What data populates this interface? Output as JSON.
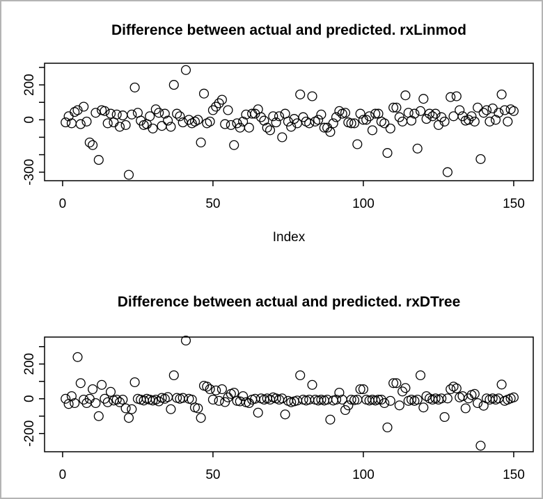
{
  "window": {
    "background": "#ffffff",
    "border_color": "#b4b4b4",
    "foreground": "#000000"
  },
  "chart_data": [
    {
      "type": "scatter",
      "title": "Difference between actual and predicted. rxLinmod",
      "xlabel": "Index",
      "ylabel": "",
      "marker": "open-circle",
      "grid": false,
      "x_note": "x value = index 1..150",
      "xlim": [
        -6,
        156.5
      ],
      "ylim": [
        -349,
        324
      ],
      "x_ticks": [
        0,
        50,
        100,
        150
      ],
      "x_tick_labels": [
        "0",
        "50",
        "100",
        "150"
      ],
      "y_ticks": [
        300,
        200,
        100,
        0,
        -100,
        -200,
        -300
      ],
      "y_tick_labels": [
        "",
        "200",
        "",
        "0",
        "",
        "",
        "-300"
      ],
      "values": [
        -15,
        20,
        -20,
        45,
        55,
        -25,
        75,
        -10,
        -130,
        -145,
        40,
        -230,
        55,
        50,
        -20,
        35,
        -15,
        30,
        -40,
        25,
        -30,
        -315,
        30,
        185,
        40,
        -5,
        -30,
        -25,
        20,
        -50,
        60,
        40,
        -35,
        35,
        -5,
        -40,
        200,
        35,
        20,
        -15,
        285,
        0,
        -20,
        -10,
        0,
        -130,
        150,
        -20,
        -10,
        55,
        75,
        95,
        115,
        -25,
        55,
        -30,
        -145,
        -20,
        -45,
        -10,
        30,
        -45,
        35,
        35,
        60,
        15,
        -5,
        -45,
        -60,
        20,
        -15,
        20,
        -100,
        35,
        -10,
        -40,
        5,
        -20,
        145,
        15,
        -10,
        -20,
        135,
        -10,
        0,
        30,
        -45,
        -45,
        -70,
        -20,
        15,
        50,
        35,
        40,
        -15,
        -20,
        -20,
        -140,
        35,
        0,
        0,
        20,
        -60,
        35,
        35,
        -10,
        -20,
        -190,
        -50,
        70,
        70,
        15,
        -10,
        140,
        40,
        -5,
        35,
        -165,
        50,
        120,
        5,
        35,
        20,
        35,
        -30,
        15,
        -10,
        -300,
        130,
        20,
        135,
        55,
        20,
        -5,
        0,
        20,
        -10,
        70,
        -225,
        40,
        55,
        -10,
        65,
        0,
        40,
        145,
        55,
        -10,
        60,
        50
      ]
    },
    {
      "type": "scatter",
      "title": "Difference between actual and predicted. rxDTree",
      "xlabel": "",
      "ylabel": "",
      "marker": "open-circle",
      "grid": false,
      "x_note": "x value = index 1..150",
      "xlim": [
        -6,
        156.5
      ],
      "ylim": [
        -305,
        355
      ],
      "x_ticks": [
        0,
        50,
        100,
        150
      ],
      "x_tick_labels": [
        "0",
        "50",
        "100",
        "150"
      ],
      "y_ticks": [
        300,
        200,
        100,
        0,
        -100,
        -200
      ],
      "y_tick_labels": [
        "",
        "200",
        "",
        "0",
        "",
        "-200"
      ],
      "values": [
        0,
        -30,
        15,
        -25,
        240,
        90,
        -5,
        -25,
        0,
        55,
        -25,
        -100,
        80,
        0,
        -20,
        40,
        -10,
        -5,
        -20,
        -5,
        -55,
        -110,
        -60,
        95,
        0,
        -5,
        -10,
        0,
        -5,
        -10,
        -5,
        -15,
        5,
        0,
        10,
        -60,
        135,
        5,
        0,
        5,
        335,
        0,
        -5,
        -50,
        -55,
        -110,
        75,
        70,
        55,
        -5,
        48,
        -12,
        55,
        -19,
        8,
        28,
        35,
        -12,
        -15,
        15,
        -20,
        -25,
        -5,
        0,
        -80,
        2,
        -5,
        2,
        -5,
        8,
        2,
        -5,
        2,
        -90,
        -12,
        -20,
        -15,
        -10,
        135,
        -5,
        -10,
        -5,
        80,
        -5,
        -10,
        -5,
        -10,
        -5,
        -120,
        -10,
        -5,
        35,
        -5,
        -65,
        -38,
        -5,
        -8,
        -5,
        55,
        55,
        -5,
        -10,
        -5,
        -10,
        -5,
        -5,
        -25,
        -165,
        -12,
        90,
        90,
        -38,
        42,
        62,
        -12,
        -5,
        -12,
        -5,
        135,
        -50,
        15,
        2,
        -5,
        2,
        -5,
        2,
        -105,
        2,
        55,
        70,
        60,
        8,
        15,
        -55,
        2,
        22,
        28,
        -25,
        -270,
        -40,
        2,
        -5,
        2,
        -5,
        2,
        82,
        -12,
        -5,
        2,
        8
      ]
    }
  ]
}
